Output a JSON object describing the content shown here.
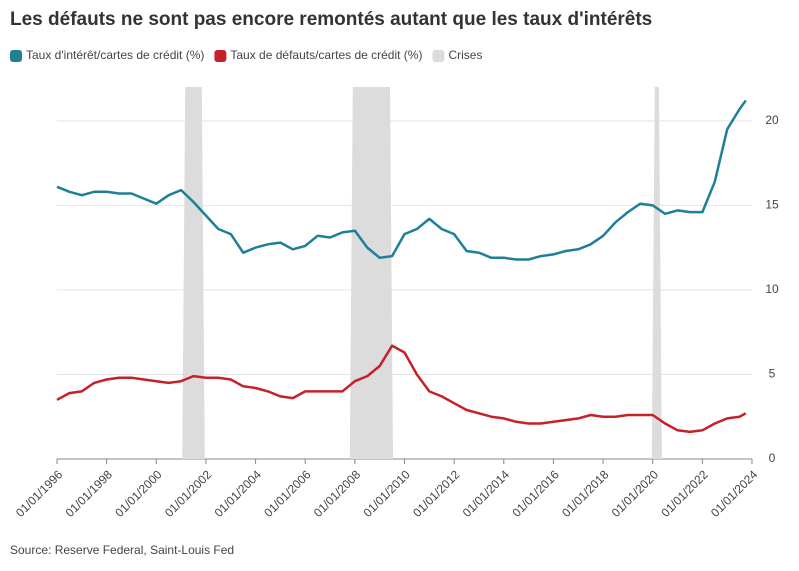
{
  "chart_data": {
    "type": "line",
    "title": "Les défauts ne sont pas encore remontés autant que les taux d'intérêts",
    "source": "Source: Reserve Federal, Saint-Louis Fed",
    "x": [
      "01/01/1996",
      "01/07/1996",
      "01/01/1997",
      "01/07/1997",
      "01/01/1998",
      "01/07/1998",
      "01/01/1999",
      "01/07/1999",
      "01/01/2000",
      "01/07/2000",
      "01/01/2001",
      "01/07/2001",
      "01/01/2002",
      "01/07/2002",
      "01/01/2003",
      "01/07/2003",
      "01/01/2004",
      "01/07/2004",
      "01/01/2005",
      "01/07/2005",
      "01/01/2006",
      "01/07/2006",
      "01/01/2007",
      "01/07/2007",
      "01/01/2008",
      "01/07/2008",
      "01/01/2009",
      "01/07/2009",
      "01/01/2010",
      "01/07/2010",
      "01/01/2011",
      "01/07/2011",
      "01/01/2012",
      "01/07/2012",
      "01/01/2013",
      "01/07/2013",
      "01/01/2014",
      "01/07/2014",
      "01/01/2015",
      "01/07/2015",
      "01/01/2016",
      "01/07/2016",
      "01/01/2017",
      "01/07/2017",
      "01/01/2018",
      "01/07/2018",
      "01/01/2019",
      "01/07/2019",
      "01/01/2020",
      "01/07/2020",
      "01/01/2021",
      "01/07/2021",
      "01/01/2022",
      "01/07/2022",
      "01/01/2023",
      "01/07/2023",
      "01/10/2023"
    ],
    "series": [
      {
        "name": "Taux d'intérêt/cartes de crédit (%)",
        "color": "#1f7f99",
        "values": [
          16.1,
          15.8,
          15.6,
          15.8,
          15.8,
          15.7,
          15.7,
          15.4,
          15.1,
          15.6,
          15.9,
          15.2,
          14.4,
          13.6,
          13.3,
          12.2,
          12.5,
          12.7,
          12.8,
          12.4,
          12.6,
          13.2,
          13.1,
          13.4,
          13.5,
          12.5,
          11.9,
          12.0,
          13.3,
          13.6,
          14.2,
          13.6,
          13.3,
          12.3,
          12.2,
          11.9,
          11.9,
          11.8,
          11.8,
          12.0,
          12.1,
          12.3,
          12.4,
          12.7,
          13.2,
          14.0,
          14.6,
          15.1,
          15.0,
          14.5,
          14.7,
          14.6,
          14.6,
          16.4,
          19.5,
          20.7,
          21.2
        ]
      },
      {
        "name": "Taux de défauts/cartes de crédit (%)",
        "color": "#c62127",
        "values": [
          3.5,
          3.9,
          4.0,
          4.5,
          4.7,
          4.8,
          4.8,
          4.7,
          4.6,
          4.5,
          4.6,
          4.9,
          4.8,
          4.8,
          4.7,
          4.3,
          4.2,
          4.0,
          3.7,
          3.6,
          4.0,
          4.0,
          4.0,
          4.0,
          4.6,
          4.9,
          5.5,
          6.7,
          6.3,
          5.0,
          4.0,
          3.7,
          3.3,
          2.9,
          2.7,
          2.5,
          2.4,
          2.2,
          2.1,
          2.1,
          2.2,
          2.3,
          2.4,
          2.6,
          2.5,
          2.5,
          2.6,
          2.6,
          2.6,
          2.1,
          1.7,
          1.6,
          1.7,
          2.1,
          2.4,
          2.5,
          2.7
        ]
      }
    ],
    "shading": {
      "name": "Crises",
      "color": "#dcdcdc",
      "periods": [
        {
          "start": "01/03/2001",
          "end": "01/11/2001"
        },
        {
          "start": "01/12/2007",
          "end": "01/06/2009"
        },
        {
          "start": "01/02/2020",
          "end": "01/04/2020"
        }
      ]
    },
    "xlim": [
      "01/01/1996",
      "01/01/2024"
    ],
    "xticks": [
      "01/01/1996",
      "01/01/1998",
      "01/01/2000",
      "01/01/2002",
      "01/01/2004",
      "01/01/2006",
      "01/01/2008",
      "01/01/2010",
      "01/01/2012",
      "01/01/2014",
      "01/01/2016",
      "01/01/2018",
      "01/01/2020",
      "01/01/2022",
      "01/01/2024"
    ],
    "ylim": [
      0,
      22
    ],
    "yticks": [
      0,
      5,
      10,
      15,
      20
    ],
    "grid": true,
    "y_axis_side": "right"
  }
}
